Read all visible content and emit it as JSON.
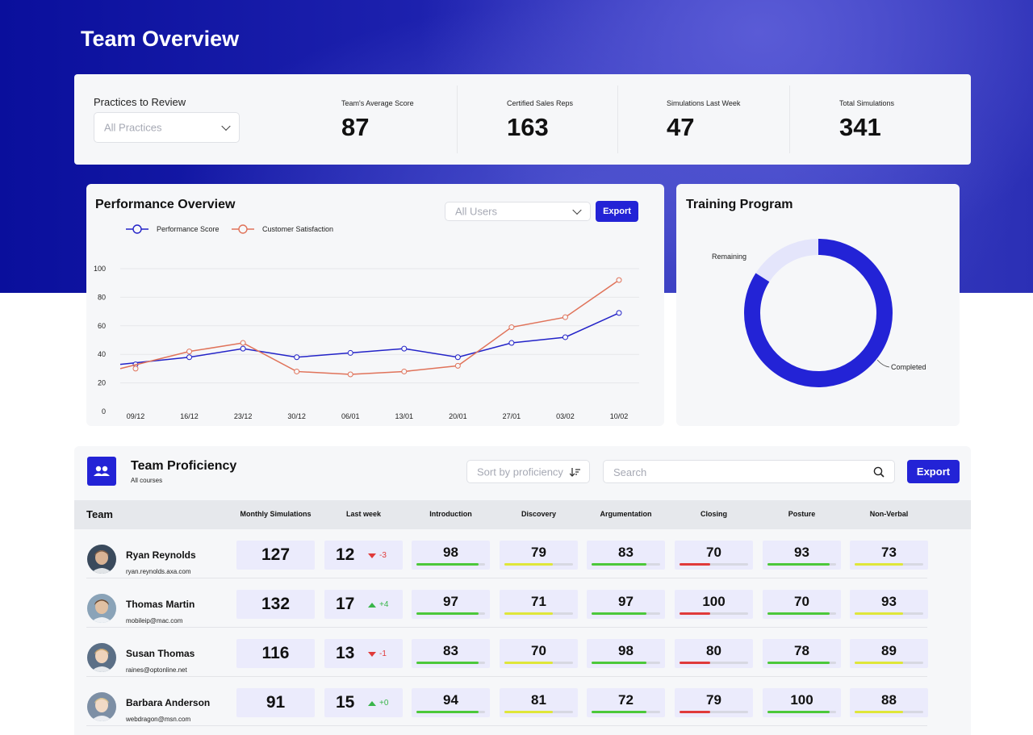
{
  "page": {
    "title": "Team Overview"
  },
  "filters": {
    "practices_label": "Practices to Review",
    "practices_value": "All Practices"
  },
  "kpis": [
    {
      "label": "Team's Average Score",
      "value": "87"
    },
    {
      "label": "Certified Sales Reps",
      "value": "163"
    },
    {
      "label": "Simulations Last Week",
      "value": "47"
    },
    {
      "label": "Total Simulations",
      "value": "341"
    }
  ],
  "performance": {
    "title": "Performance Overview",
    "users_filter": "All Users",
    "export_label": "Export"
  },
  "chart_data": {
    "type": "line",
    "x": [
      "09/12",
      "16/12",
      "23/12",
      "30/12",
      "06/01",
      "13/01",
      "20/01",
      "27/01",
      "03/02",
      "10/02"
    ],
    "series": [
      {
        "name": "Performance Score",
        "color": "#2323c8",
        "values": [
          33,
          38,
          44,
          38,
          41,
          44,
          38,
          48,
          52,
          69
        ]
      },
      {
        "name": "Customer Satisfaction",
        "color": "#e0735a",
        "values": [
          30,
          42,
          48,
          28,
          26,
          28,
          32,
          59,
          66,
          92
        ]
      }
    ],
    "y_ticks": [
      "0",
      "20",
      "40",
      "60",
      "80",
      "100"
    ],
    "ylim": [
      0,
      100
    ],
    "grid": true,
    "legend": "top-left"
  },
  "training": {
    "title": "Training Program",
    "remaining_label": "Remaining",
    "completed_label": "Completed",
    "completed_fraction": 0.84,
    "completed_color": "#2323d6",
    "remaining_color": "#e4e5fb"
  },
  "proficiency": {
    "title": "Team Proficiency",
    "subtitle": "All courses",
    "sort_label": "Sort by proficiency",
    "search_placeholder": "Search",
    "export_label": "Export",
    "headers": {
      "team": "Team",
      "monthly": "Monthly Simulations",
      "last_week": "Last week",
      "skills": [
        "Introduction",
        "Discovery",
        "Argumentation",
        "Closing",
        "Posture",
        "Non-Verbal"
      ]
    },
    "rows": [
      {
        "name": "Ryan Reynolds",
        "email": "ryan.reynolds.axa.com",
        "monthly": "127",
        "last_week": "12",
        "delta": "-3",
        "trend": "down",
        "scores": [
          "98",
          "79",
          "83",
          "70",
          "93",
          "73"
        ]
      },
      {
        "name": "Thomas Martin",
        "email": "mobileip@mac.com",
        "monthly": "132",
        "last_week": "17",
        "delta": "+4",
        "trend": "up",
        "scores": [
          "97",
          "71",
          "97",
          "100",
          "70",
          "93"
        ]
      },
      {
        "name": "Susan Thomas",
        "email": "raines@optonline.net",
        "monthly": "116",
        "last_week": "13",
        "delta": "-1",
        "trend": "down",
        "scores": [
          "83",
          "70",
          "98",
          "80",
          "78",
          "89"
        ]
      },
      {
        "name": "Barbara Anderson",
        "email": "webdragon@msn.com",
        "monthly": "91",
        "last_week": "15",
        "delta": "+0",
        "trend": "up",
        "scores": [
          "94",
          "81",
          "72",
          "79",
          "100",
          "88"
        ]
      }
    ],
    "skill_bar_levels": [
      0.9,
      0.7,
      0.8,
      0.45,
      0.9,
      0.7
    ],
    "skill_bar_colors": [
      "#4cc83a",
      "#dfe63a",
      "#4cc83a",
      "#e03a3a",
      "#4cc83a",
      "#dfe63a"
    ]
  },
  "colors": {
    "accent": "#2323d6",
    "hero": "#1a1fb0",
    "up": "#39b54a",
    "down": "#e03a3a"
  }
}
